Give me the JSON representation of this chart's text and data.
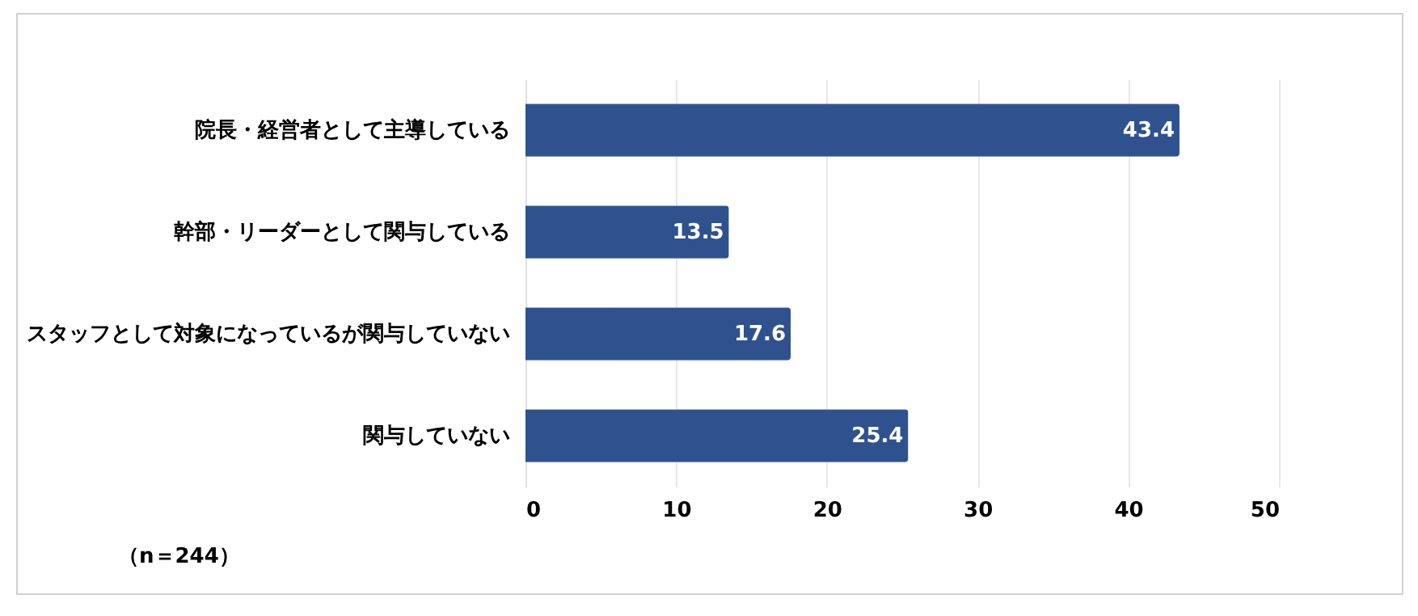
{
  "chart_data": {
    "type": "bar",
    "orientation": "horizontal",
    "categories": [
      "院長・経営者として主導している",
      "幹部・リーダーとして関与している",
      "スタッフとして対象になっているが関与していない",
      "関与していない"
    ],
    "values": [
      43.4,
      13.5,
      17.6,
      25.4
    ],
    "color": "#2f528f",
    "xlim": [
      0,
      50
    ],
    "xticks": [
      0,
      10,
      20,
      30,
      40,
      50
    ],
    "grid": "x",
    "data_labels": true,
    "annotations": [
      "（n＝244）"
    ]
  }
}
